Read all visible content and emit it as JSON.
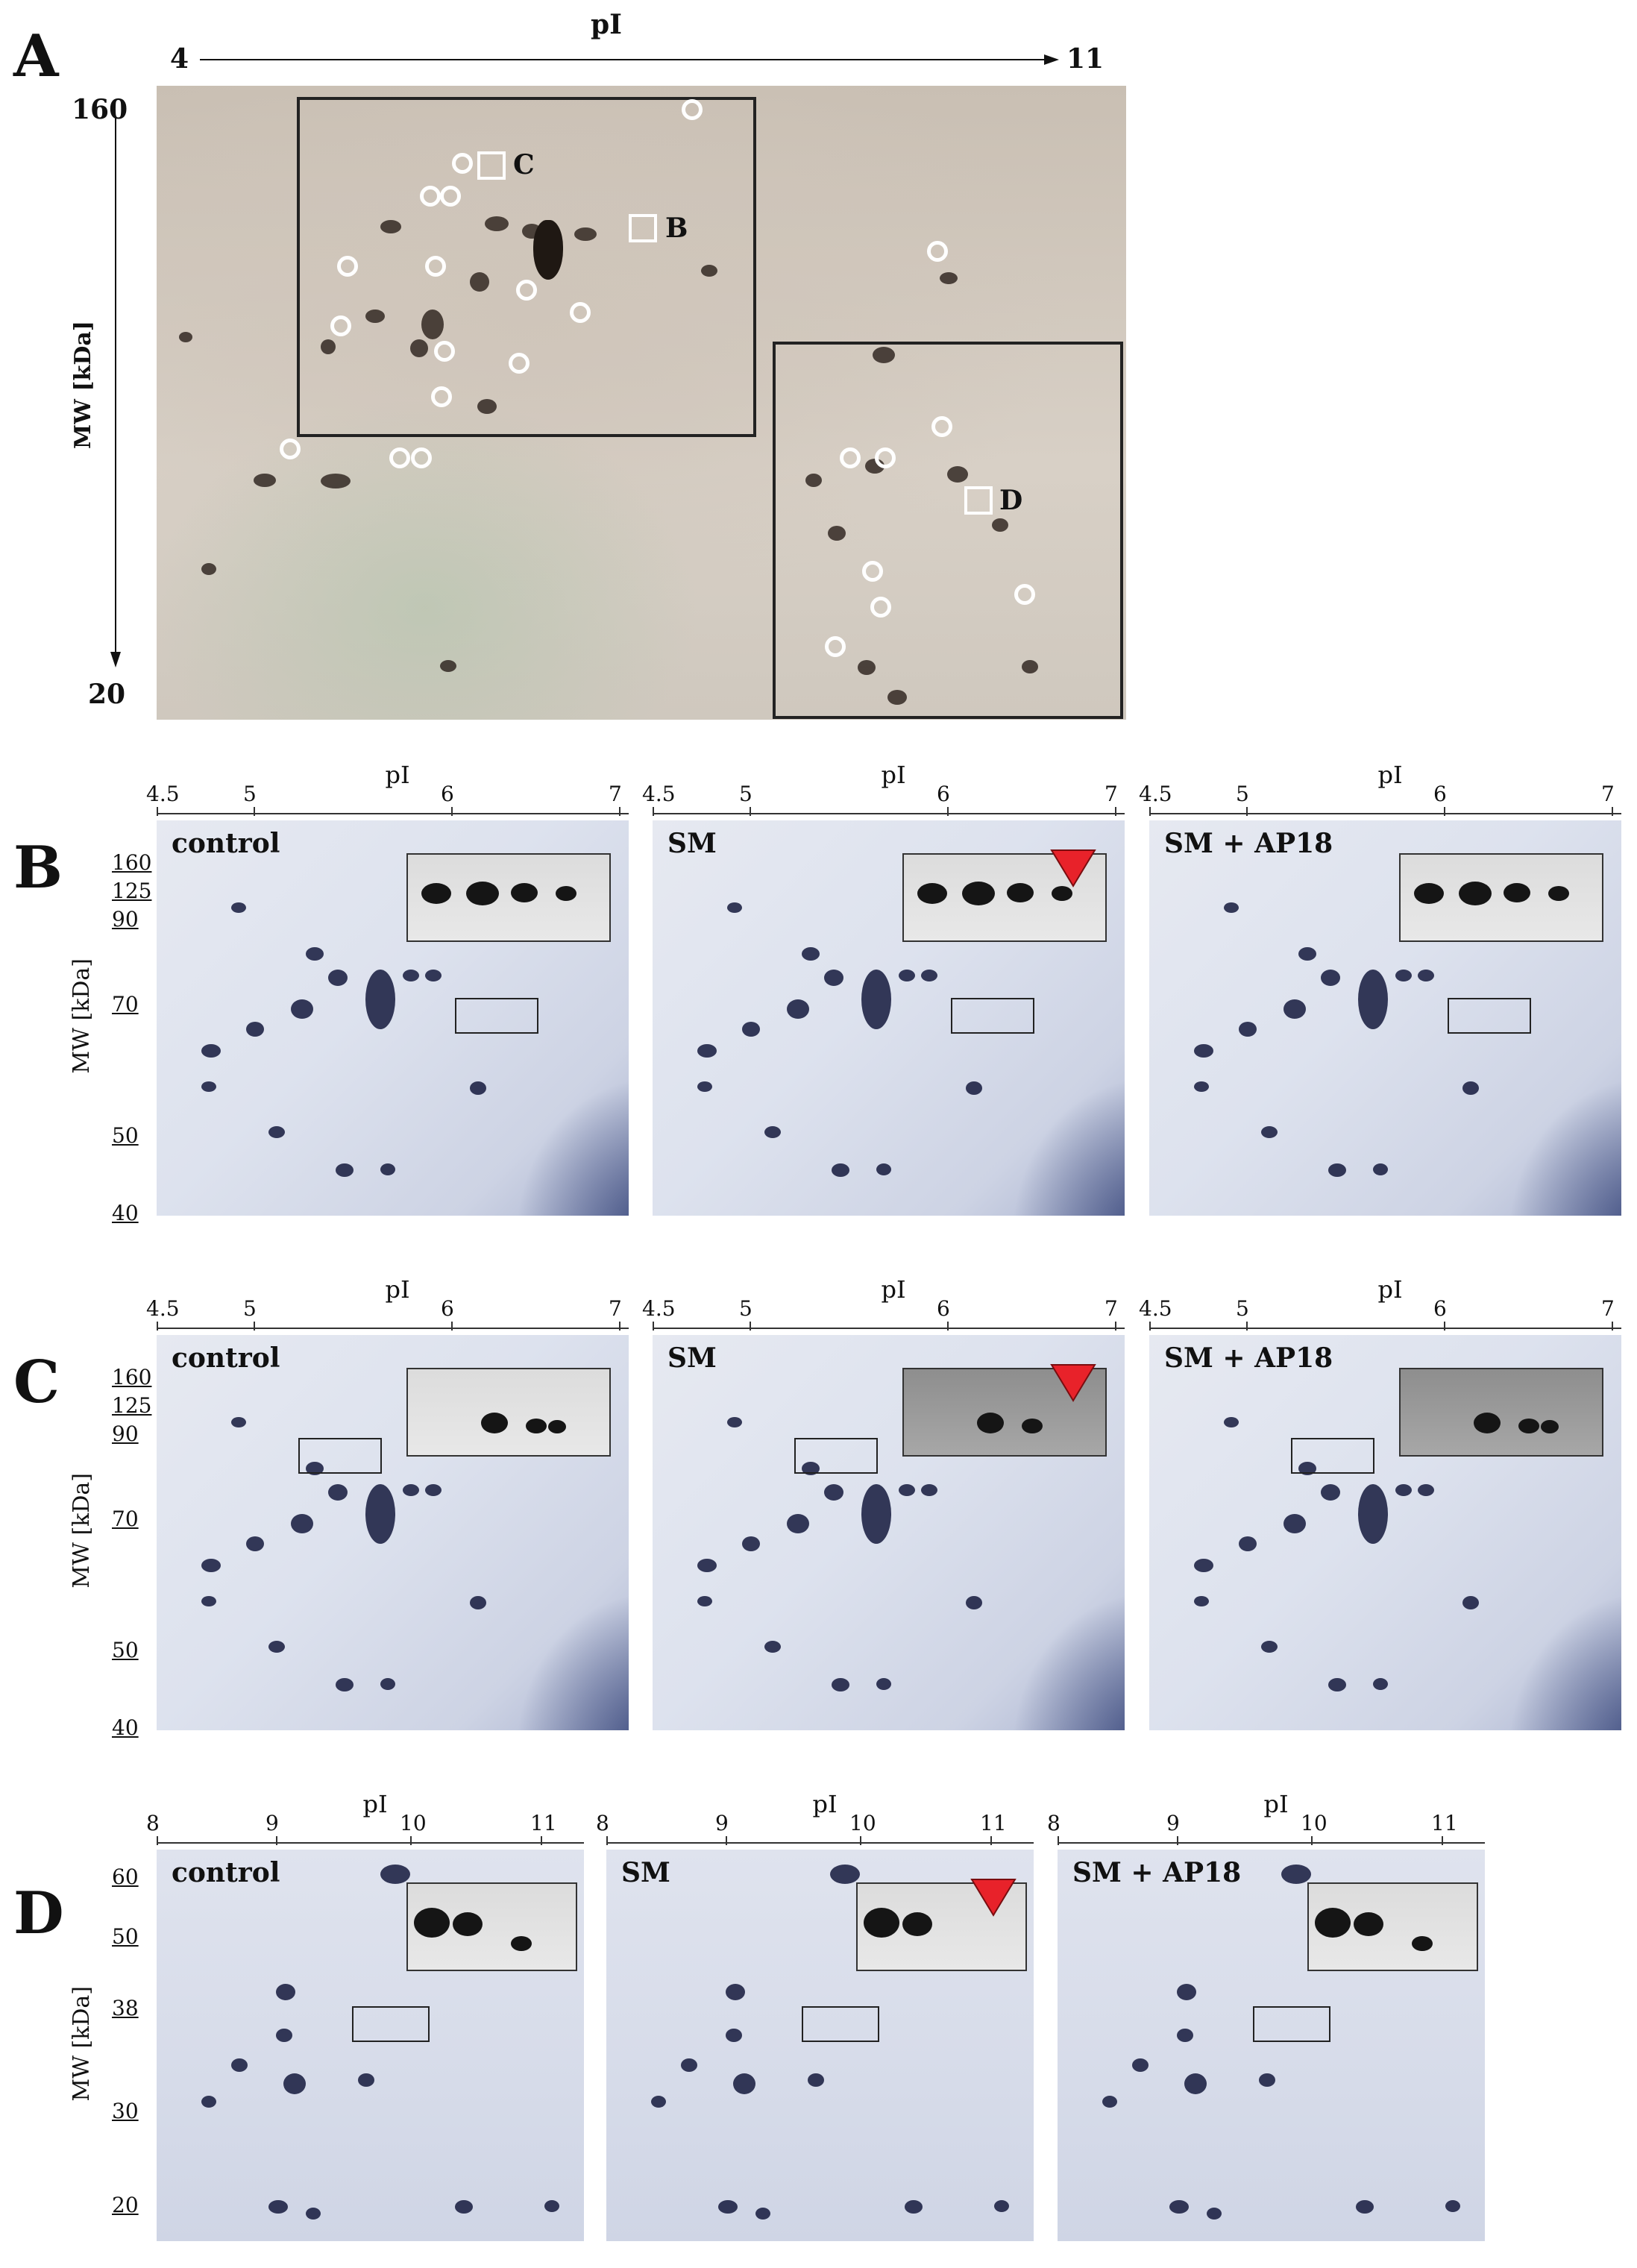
{
  "panelA": {
    "letter": "A",
    "x_axis_label": "pI",
    "x_min": "4",
    "x_max": "11",
    "y_axis_label": "MW [kDa]",
    "y_max": "160",
    "y_min": "20",
    "box_labels": [
      "C",
      "B",
      "D"
    ]
  },
  "panelB": {
    "letter": "B",
    "pi_label": "pI",
    "pi_ticks": [
      "4.5",
      "5",
      "6",
      "7"
    ],
    "mw_label": "MW [kDa]",
    "mw_ticks": [
      "160",
      "125",
      "90",
      "70",
      "50",
      "40"
    ],
    "conditions": [
      "control",
      "SM",
      "SM + AP18"
    ]
  },
  "panelC": {
    "letter": "C",
    "pi_label": "pI",
    "pi_ticks": [
      "4.5",
      "5",
      "6",
      "7"
    ],
    "mw_label": "MW [kDa]",
    "mw_ticks": [
      "160",
      "125",
      "90",
      "70",
      "50",
      "40"
    ],
    "conditions": [
      "control",
      "SM",
      "SM + AP18"
    ]
  },
  "panelD": {
    "letter": "D",
    "pi_label": "pI",
    "pi_ticks": [
      "8",
      "9",
      "10",
      "11"
    ],
    "mw_label": "MW [kDa]",
    "mw_ticks": [
      "60",
      "50",
      "38",
      "30",
      "20"
    ],
    "conditions": [
      "control",
      "SM",
      "SM + AP18"
    ]
  },
  "colors": {
    "arrowhead": "#e8222a",
    "gel_blue": "#dde2ee",
    "gel_a": "#d2c9be"
  }
}
